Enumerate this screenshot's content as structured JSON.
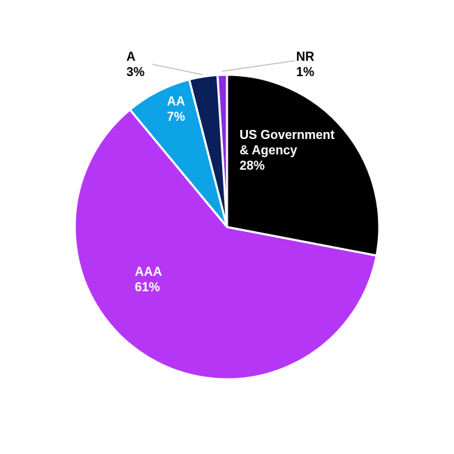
{
  "chart_data": {
    "type": "pie",
    "categories": [
      "US Government & Agency",
      "AAA",
      "AA",
      "A",
      "NR"
    ],
    "values": [
      28,
      61,
      7,
      3,
      1
    ],
    "value_labels": [
      "28%",
      "61%",
      "7%",
      "3%",
      "1%"
    ],
    "colors": [
      "#000000",
      "#b636f5",
      "#0ea2e6",
      "#0b1f5a",
      "#8a2be2"
    ]
  }
}
